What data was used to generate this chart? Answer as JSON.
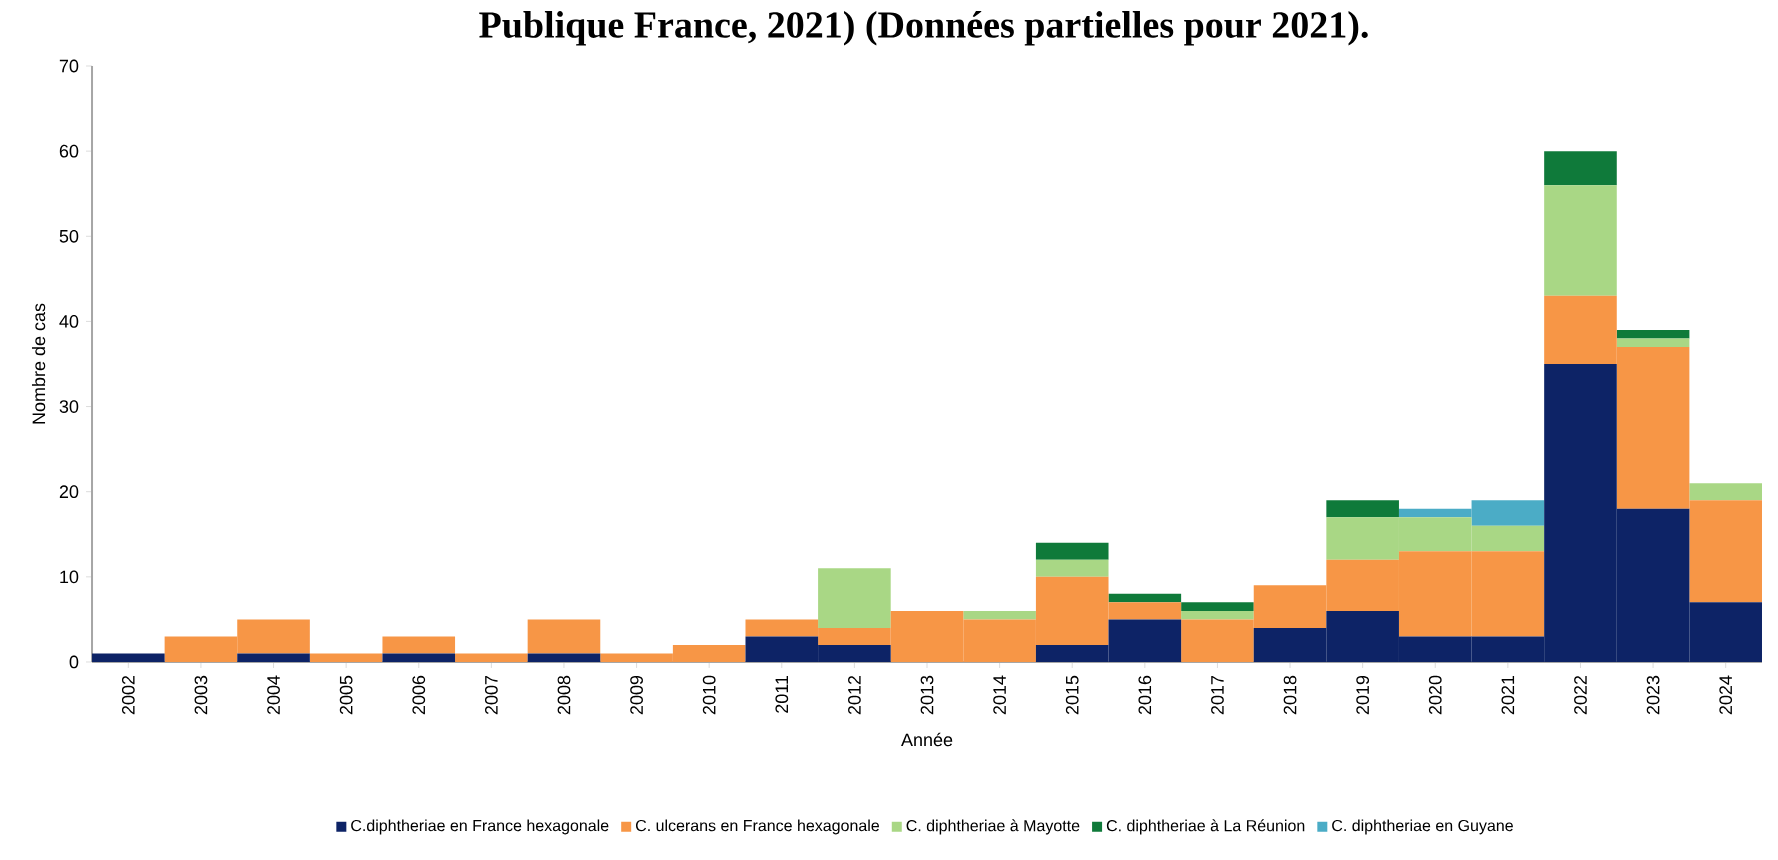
{
  "chart_data": {
    "type": "bar",
    "stacked": true,
    "title": "Publique France, 2021) (Données partielles pour 2021).",
    "xlabel": "Année",
    "ylabel": "Nombre de cas",
    "categories": [
      "2002",
      "2003",
      "2004",
      "2005",
      "2006",
      "2007",
      "2008",
      "2009",
      "2010",
      "2011",
      "2012",
      "2013",
      "2014",
      "2015",
      "2016",
      "2017",
      "2018",
      "2019",
      "2020",
      "2021",
      "2022",
      "2023",
      "2024"
    ],
    "series": [
      {
        "name": "C.diphtheriae en France hexagonale",
        "color": "#0d2366",
        "values": [
          1,
          0,
          1,
          0,
          1,
          0,
          1,
          0,
          0,
          3,
          2,
          0,
          0,
          2,
          5,
          0,
          4,
          6,
          3,
          3,
          35,
          18,
          7
        ]
      },
      {
        "name": "C. ulcerans en France hexagonale",
        "color": "#f79646",
        "values": [
          0,
          3,
          4,
          1,
          2,
          1,
          4,
          1,
          2,
          2,
          2,
          6,
          5,
          8,
          2,
          5,
          5,
          6,
          10,
          10,
          8,
          19,
          12
        ]
      },
      {
        "name": "C. diphtheriae à Mayotte",
        "color": "#a9d785",
        "values": [
          0,
          0,
          0,
          0,
          0,
          0,
          0,
          0,
          0,
          0,
          7,
          0,
          1,
          2,
          0,
          1,
          0,
          5,
          4,
          3,
          13,
          1,
          2
        ]
      },
      {
        "name": "C. diphtheriae à La Réunion",
        "color": "#0f7a3a",
        "values": [
          0,
          0,
          0,
          0,
          0,
          0,
          0,
          0,
          0,
          0,
          0,
          0,
          0,
          2,
          1,
          1,
          0,
          2,
          0,
          0,
          4,
          1,
          0
        ]
      },
      {
        "name": "C. diphtheriae en Guyane",
        "color": "#4bacc6",
        "values": [
          0,
          0,
          0,
          0,
          0,
          0,
          0,
          0,
          0,
          0,
          0,
          0,
          0,
          0,
          0,
          0,
          0,
          0,
          1,
          3,
          0,
          0,
          0
        ]
      }
    ],
    "ylim": [
      0,
      70
    ],
    "yticks": [
      0,
      10,
      20,
      30,
      40,
      50,
      60,
      70
    ],
    "grid": false,
    "legend": "bottom"
  }
}
